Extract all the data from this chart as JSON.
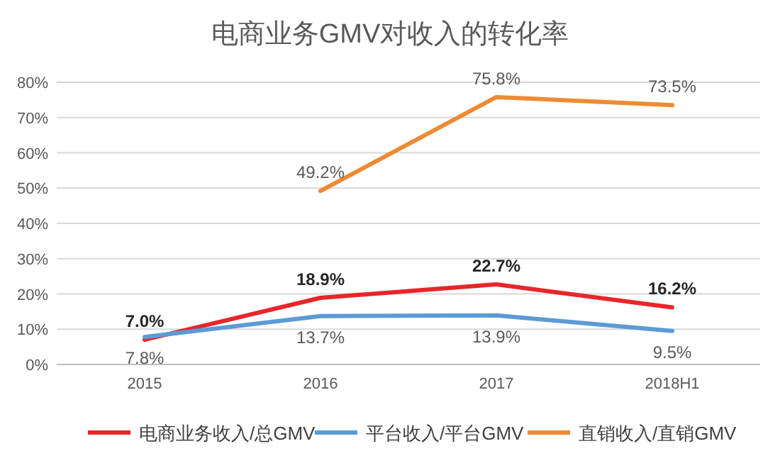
{
  "chart_data": {
    "type": "line",
    "title": "电商业务GMV对收入的转化率",
    "categories": [
      "2015",
      "2016",
      "2017",
      "2018H1"
    ],
    "series": [
      {
        "name": "电商业务收入/总GMV",
        "color": "#e8262a",
        "values": [
          7.0,
          18.9,
          22.7,
          16.2
        ],
        "value_labels": [
          "7.0%",
          "18.9%",
          "22.7%",
          "16.2%"
        ]
      },
      {
        "name": "平台收入/平台GMV",
        "color": "#5b9bd5",
        "values": [
          7.8,
          13.7,
          13.9,
          9.5
        ],
        "value_labels": [
          "7.8%",
          "13.7%",
          "13.9%",
          "9.5%"
        ]
      },
      {
        "name": "直销收入/直销GMV",
        "color": "#ed8b34",
        "values": [
          null,
          49.2,
          75.8,
          73.5
        ],
        "value_labels": [
          null,
          "49.2%",
          "75.8%",
          "73.5%"
        ]
      }
    ],
    "ylim": [
      0,
      80
    ],
    "yticks": [
      {
        "value": 0,
        "label": "0%"
      },
      {
        "value": 10,
        "label": "10%"
      },
      {
        "value": 20,
        "label": "20%"
      },
      {
        "value": 30,
        "label": "30%"
      },
      {
        "value": 40,
        "label": "40%"
      },
      {
        "value": 50,
        "label": "50%"
      },
      {
        "value": 60,
        "label": "60%"
      },
      {
        "value": 70,
        "label": "70%"
      },
      {
        "value": 80,
        "label": "80%"
      }
    ],
    "grid": "y",
    "legend": "bottom",
    "marker": "none",
    "line_style": "solid"
  }
}
